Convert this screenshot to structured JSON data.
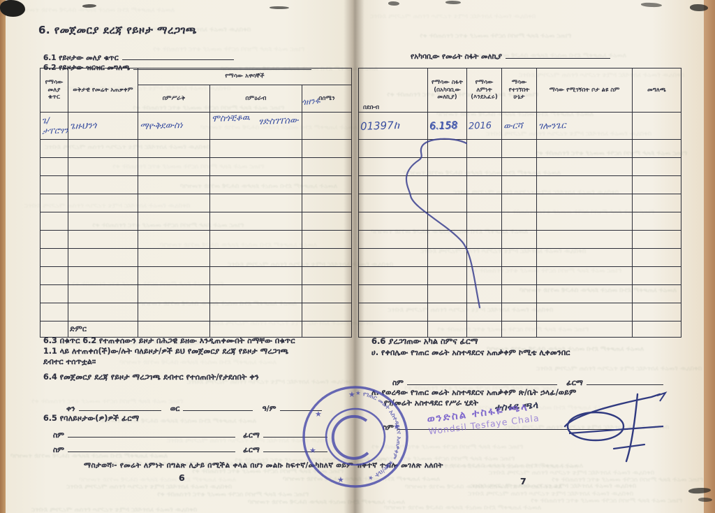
{
  "left_page": {
    "section_title": "6. የመጀመርያ ደረጃ የይዞታ ማረጋገጫ",
    "field_6_1_label": "6.1 የይዞታው መለያ ቁጥር",
    "field_6_2_label": "6.2 የይዞታው ዝርዝር መግለጫ",
    "clause_6_3": "6.3 በቁጥር 6.2 የተጠቀሰውን ይዞታ በሕጋዊ ይዘው እንዲጠቀሙበት ስማቸው በቁጥር\n1.1 ላይ ለተጠቀሰ(ች)ው/ሉት ባለይዞታ/ዎች ይህ የመጀመርያ ደረጃ የይዞታ ማረጋገጫ\nደብተር ተሰጥቷል።",
    "clause_6_4": "6.4 የመጀመርያ ደረጃ የይዞታ ማረጋገጫ ደብተር የተሰጠበት/የታደሰበት ቀን",
    "date_day_label": "ቀን",
    "date_month_label": "ወር",
    "date_year_label": "ዓ/ም",
    "clause_6_5": "6.5 የባለይዞታው(ዎ)ዎች ፊርማ",
    "name_label": "ስም",
    "signature_label": "ፊርማ",
    "page_number": "6"
  },
  "right_page": {
    "measure_line_label": "የአካባቢው የመሬት ስፋት መለኪያ",
    "clause_6_6": "6.6 ያረጋገጠው አካል ስምና ፊርማ",
    "item_ha": "ሀ. የቀበሌው የገጠር መሬት አስተዳደርና አጠቃቀም ኮሚቴ ሊቀመንበር",
    "item_le_line1": "ለ. የወረዳው የገጠር መሬት አስተዳደርና አጠቃቀም ጽ/ቤት ኃላፊ/ወይም",
    "item_le_line2": "የገ/መሬት አስተዳደር የሥራ ሂደት",
    "name_label": "ስም",
    "signature_label": "ፊርማ",
    "page_number": "7"
  },
  "table": {
    "left_headers": {
      "col_plot_id": "የማሳው መለያ ቁጥር",
      "col_land_use": "ወቅታዊ የመሬት አጠቃቀም",
      "group_neighbors": "የማሳው አዋሳኞች",
      "sub_east": "በምሥራቅ",
      "sub_west": "በምዕራብ",
      "sub_north": "በሰሜን"
    },
    "right_headers": {
      "col_south": "በደቡብ",
      "col_area": "የማሳው ስፋት (በአካባቢው መለኪያ)",
      "col_fertility": "የማሳው ለምነት (እንደአፈሩ)",
      "col_obtained": "ማሳው የተገኘበት ሁኔታ",
      "col_place_name": "ማሳው የሚገኝበት ቦታ ልዩ ስም",
      "col_remarks": "መግለጫ"
    },
    "total_label": "ድምር",
    "row1_handwritten": {
      "plot_id": "ጌ/ታፐሮፃን",
      "land_use": "ጌዙህንጎ",
      "east": "ማዮቅደውስነ",
      "west_line1": "ሞስጎቺቆዉ",
      "west_line2": "ፃድስገፐሰው",
      "north": "",
      "south": "01397ከ",
      "area": "6.158",
      "fertility": "2016",
      "obtained": "ውርሻ",
      "place_name": "ገሎንጌር",
      "remarks": ""
    },
    "header_scribble": "ጎዘንፋ"
  },
  "footer": {
    "note": "ማስታወሻ፡- የመሬት ለምነት በግልጽ ሊታይ በሚችል ቀላል በሆነ መልኩ ከፍተኛ/መካከለኛ ወይም ዝቅተኛ ተብሎ መገለጽ አለበት"
  },
  "stamps": {
    "round_ring_text": "★ የገጠር መሬት አስተዳደርና አጠቃቀም ★ ጽ/ቤት ★",
    "name_stamp_amharic": "ወንድስል ተስፋዬ ጫላ",
    "name_stamp_latin": "Wondsil Tesfaye Chala",
    "handwritten_officer_name": "ተስፋዬ ጫላ"
  },
  "colors": {
    "ink": "#2f3140",
    "handwriting_blue": "#3a4fa0",
    "stamp_blue": "#4547a9",
    "stamp_purple": "#7b5ab8",
    "paper": "#f2eee2"
  },
  "bleed": {
    "samples": [
      "ለመሬት አጠቃቀም ደንብ መሰረት ይዞታው በሕጋዊ መንገድ ተመዝግቦ",
      "በቀበሌው የመሬት አስተዳደር ኮሚቴ ተረጋግጦ የተሰጠ ማረጋገጫ ደብተር",
      "የገጠር መሬት ይዞታ ምዝገባ ስርዓት መመሪያ ቁጥር የተሰጠበት ቀን"
    ]
  }
}
